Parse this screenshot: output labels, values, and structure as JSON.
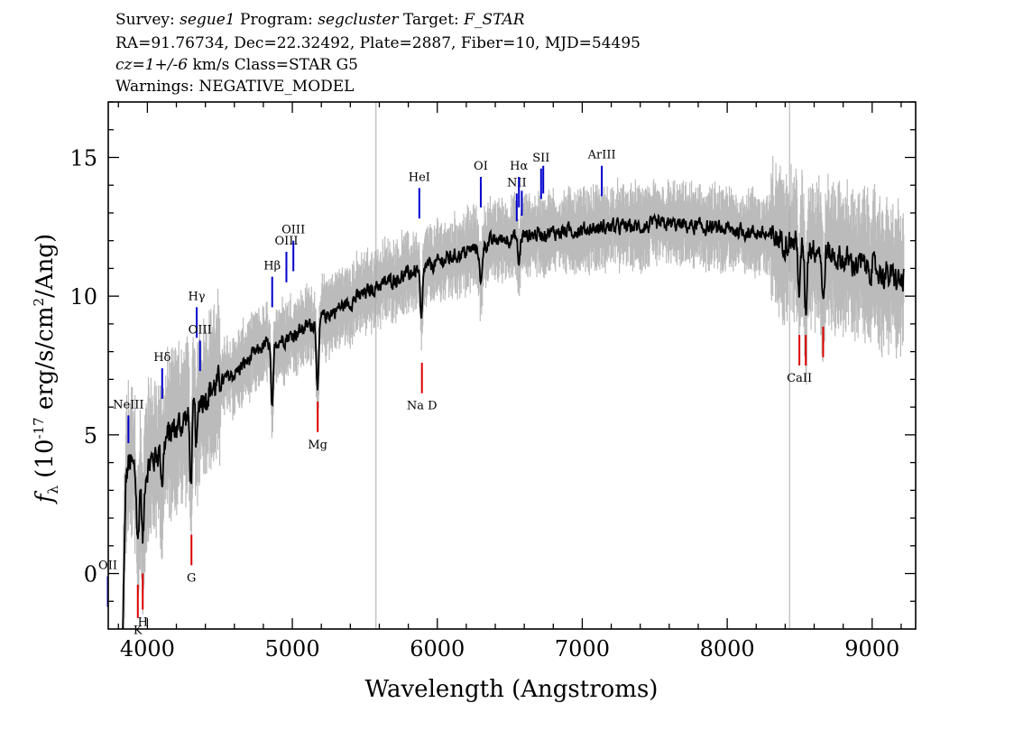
{
  "header": {
    "line1": {
      "survey_label": "Survey: ",
      "survey": "segue1",
      "program_label": " Program: ",
      "program": "segcluster",
      "target_label": " Target: ",
      "target": "F_STAR"
    },
    "line2": "RA=91.76734, Dec=22.32492, Plate=2887, Fiber=10, MJD=54495",
    "line3": {
      "cz": "cz=1+/-6",
      "rest": " km/s Class=STAR G5"
    },
    "line4": "Warnings: NEGATIVE_MODEL"
  },
  "chart_data": {
    "type": "line",
    "xlabel": "Wavelength (Angstroms)",
    "ylabel": {
      "f": "f",
      "sub": "λ",
      "pre": " (10",
      "exp": "-17",
      "mid": " erg/s/cm",
      "exp2": "2",
      "post": "/Ang)"
    },
    "xlim": [
      3730,
      9300
    ],
    "ylim": [
      -2,
      17
    ],
    "x_ticks": [
      4000,
      5000,
      6000,
      7000,
      8000,
      9000
    ],
    "y_ticks": [
      0,
      5,
      10,
      15
    ],
    "colors": {
      "flux": "#000000",
      "error_band": "#bbbbbb",
      "emission": "#0000cc",
      "absorption": "#dd0000",
      "vline": "#aaaaaa"
    },
    "continuum": [
      [
        3830,
        2.5
      ],
      [
        3870,
        4.0
      ],
      [
        3950,
        3.5
      ],
      [
        4050,
        4.2
      ],
      [
        4150,
        5.0
      ],
      [
        4250,
        5.5
      ],
      [
        4350,
        6.2
      ],
      [
        4450,
        6.7
      ],
      [
        4600,
        7.2
      ],
      [
        4800,
        8.2
      ],
      [
        5000,
        8.6
      ],
      [
        5200,
        9.2
      ],
      [
        5400,
        9.8
      ],
      [
        5600,
        10.4
      ],
      [
        5800,
        10.8
      ],
      [
        6000,
        11.2
      ],
      [
        6200,
        11.6
      ],
      [
        6400,
        12.0
      ],
      [
        6600,
        12.2
      ],
      [
        6800,
        12.3
      ],
      [
        7000,
        12.4
      ],
      [
        7200,
        12.5
      ],
      [
        7400,
        12.5
      ],
      [
        7600,
        12.6
      ],
      [
        7800,
        12.5
      ],
      [
        8000,
        12.4
      ],
      [
        8200,
        12.3
      ],
      [
        8400,
        12.0
      ],
      [
        8600,
        11.8
      ],
      [
        8800,
        11.3
      ],
      [
        9000,
        11.0
      ],
      [
        9200,
        10.5
      ]
    ],
    "absorption_dips": [
      [
        3934,
        2.5
      ],
      [
        3969,
        2.5
      ],
      [
        4102,
        1.2
      ],
      [
        4300,
        2.5
      ],
      [
        4340,
        1.5
      ],
      [
        4861,
        2.5
      ],
      [
        5175,
        2.5
      ],
      [
        5890,
        2.0
      ],
      [
        6300,
        1.5
      ],
      [
        6563,
        1.0
      ],
      [
        8498,
        1.8
      ],
      [
        8542,
        2.4
      ],
      [
        8662,
        2.0
      ]
    ],
    "vertical_lines": [
      5577,
      8430
    ],
    "emission_lines": [
      {
        "label": "OII",
        "wave": 3727,
        "y1": -1.2,
        "y2": -0.1
      },
      {
        "label": "NeIII",
        "wave": 3869,
        "y1": 4.7,
        "y2": 5.7
      },
      {
        "label": "Hδ",
        "wave": 4102,
        "y1": 6.3,
        "y2": 7.4
      },
      {
        "label": "Hγ",
        "wave": 4340,
        "y1": 8.5,
        "y2": 9.6
      },
      {
        "label": "OIII",
        "wave": 4363,
        "y1": 7.3,
        "y2": 8.4
      },
      {
        "label": "Hβ",
        "wave": 4861,
        "y1": 9.6,
        "y2": 10.7
      },
      {
        "label": "OIII",
        "wave": 4959,
        "y1": 10.5,
        "y2": 11.6
      },
      {
        "label": "OIII",
        "wave": 5007,
        "y1": 10.9,
        "y2": 12.0
      },
      {
        "label": "HeI",
        "wave": 5876,
        "y1": 12.8,
        "y2": 13.9
      },
      {
        "label": "OI",
        "wave": 6300,
        "y1": 13.2,
        "y2": 14.3
      },
      {
        "label": "NII",
        "wave": 6548,
        "y1": 12.7,
        "y2": 13.7
      },
      {
        "label": "Hα",
        "wave": 6563,
        "y1": 13.2,
        "y2": 14.3
      },
      {
        "label": "NII",
        "wave": 6583,
        "y1": 12.9,
        "y2": 13.8
      },
      {
        "label": "SII",
        "wave": 6716,
        "y1": 13.5,
        "y2": 14.6
      },
      {
        "label": "SII",
        "wave": 6731,
        "y1": 13.7,
        "y2": 14.7
      },
      {
        "label": "ArIII",
        "wave": 7135,
        "y1": 13.6,
        "y2": 14.7
      }
    ],
    "absorption_lines": [
      {
        "label": "K",
        "wave": 3934,
        "y1": -1.6,
        "y2": -0.4
      },
      {
        "label": "H",
        "wave": 3968,
        "y1": -1.3,
        "y2": 0
      },
      {
        "label": "G",
        "wave": 4304,
        "y1": 0.3,
        "y2": 1.4
      },
      {
        "label": "Mg",
        "wave": 5175,
        "y1": 5.1,
        "y2": 6.2
      },
      {
        "label": "Na D",
        "wave": 5894,
        "y1": 6.5,
        "y2": 7.6
      },
      {
        "label": "CaII",
        "wave": 8498,
        "y1": 7.5,
        "y2": 8.6
      },
      {
        "label": "CaII",
        "wave": 8542,
        "y1": 7.5,
        "y2": 8.6
      },
      {
        "label": "CaII",
        "wave": 8662,
        "y1": 7.8,
        "y2": 8.9
      }
    ]
  }
}
